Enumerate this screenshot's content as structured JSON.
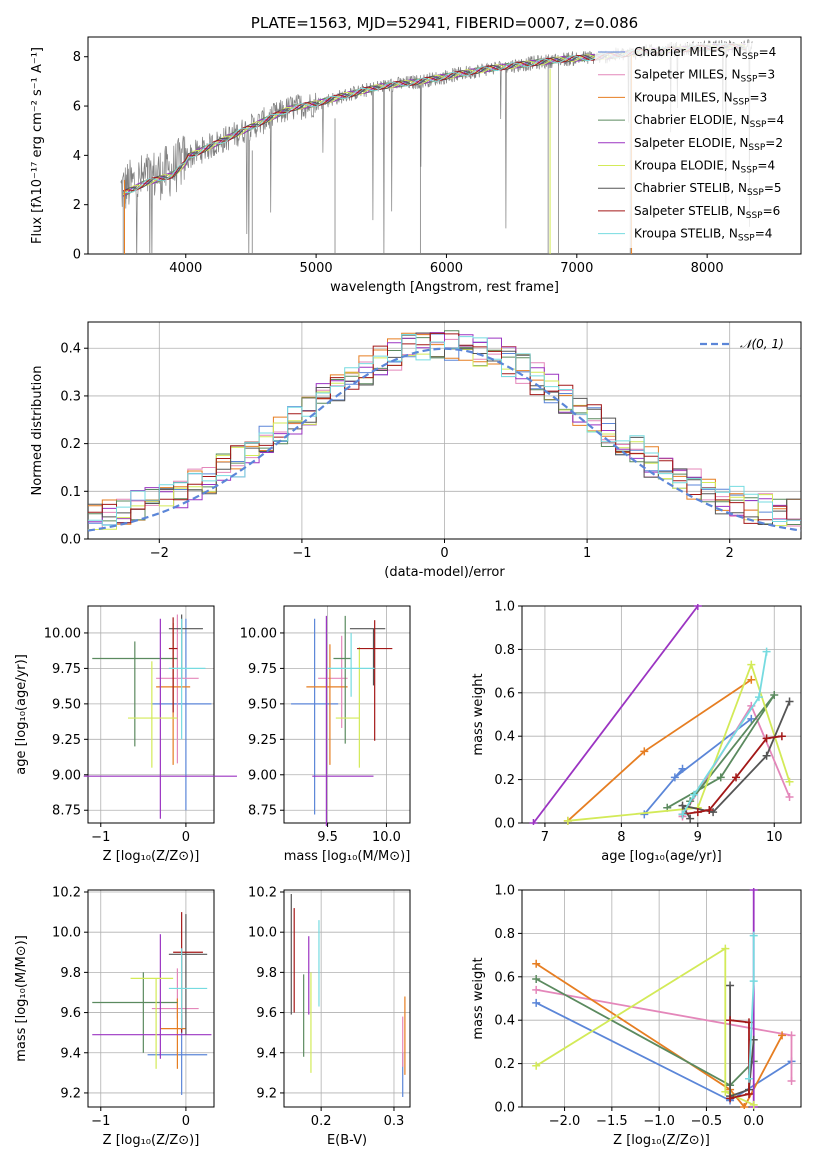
{
  "title": "PLATE=1563, MJD=52941, FIBERID=0007, z=0.086",
  "colors": {
    "Chabrier MILES": "#5b86d8",
    "Salpeter MILES": "#e487ba",
    "Kroupa MILES": "#e67e22",
    "Chabrier ELODIE": "#5b8a5f",
    "Salpeter ELODIE": "#9b34c2",
    "Kroupa ELODIE": "#d3ea58",
    "Chabrier STELIB": "#555555",
    "Salpeter STELIB": "#a31818",
    "Kroupa STELIB": "#76dbe0",
    "data": "#808080",
    "normal": "#5b86d8"
  },
  "chart_data": [
    {
      "id": "spectrum",
      "type": "line",
      "title": "PLATE=1563, MJD=52941, FIBERID=0007, z=0.086",
      "xlabel": "wavelength [Angstrom, rest frame]",
      "ylabel": "Flux [fλ10⁻¹⁷ erg cm⁻² s⁻¹ A⁻¹]",
      "xlim": [
        3250,
        8720
      ],
      "ylim": [
        0,
        8.8
      ],
      "xticks": [
        4000,
        5000,
        6000,
        7000,
        8000
      ],
      "yticks": [
        0,
        2,
        4,
        6,
        8
      ],
      "grid": false,
      "legend_position": "upper-right",
      "data_trend": [
        [
          3500,
          2.6
        ],
        [
          3700,
          3.1
        ],
        [
          3900,
          3.4
        ],
        [
          4000,
          3.9
        ],
        [
          4200,
          4.4
        ],
        [
          4400,
          4.9
        ],
        [
          4600,
          5.4
        ],
        [
          4800,
          5.9
        ],
        [
          5000,
          6.1
        ],
        [
          5200,
          6.4
        ],
        [
          5500,
          6.8
        ],
        [
          5800,
          7.0
        ],
        [
          6000,
          7.2
        ],
        [
          6300,
          7.5
        ],
        [
          6600,
          7.7
        ],
        [
          6900,
          7.9
        ],
        [
          7200,
          8.0
        ],
        [
          7500,
          8.2
        ],
        [
          7800,
          8.3
        ],
        [
          8100,
          8.4
        ],
        [
          8350,
          8.4
        ]
      ],
      "data_range": [
        3500,
        8350
      ],
      "legend": [
        {
          "label": "Chabrier MILES, N",
          "sub": "SSP",
          "tail": "=4",
          "model": "Chabrier MILES"
        },
        {
          "label": "Salpeter MILES, N",
          "sub": "SSP",
          "tail": "=3",
          "model": "Salpeter MILES"
        },
        {
          "label": "Kroupa MILES, N",
          "sub": "SSP",
          "tail": "=3",
          "model": "Kroupa MILES"
        },
        {
          "label": "Chabrier ELODIE, N",
          "sub": "SSP",
          "tail": "=4",
          "model": "Chabrier ELODIE"
        },
        {
          "label": "Salpeter ELODIE, N",
          "sub": "SSP",
          "tail": "=2",
          "model": "Salpeter ELODIE"
        },
        {
          "label": "Kroupa ELODIE, N",
          "sub": "SSP",
          "tail": "=4",
          "model": "Kroupa ELODIE"
        },
        {
          "label": "Chabrier STELIB, N",
          "sub": "SSP",
          "tail": "=5",
          "model": "Chabrier STELIB"
        },
        {
          "label": "Salpeter STELIB, N",
          "sub": "SSP",
          "tail": "=6",
          "model": "Salpeter STELIB"
        },
        {
          "label": "Kroupa STELIB, N",
          "sub": "SSP",
          "tail": "=4",
          "model": "Kroupa STELIB"
        }
      ]
    },
    {
      "id": "residuals",
      "type": "line",
      "xlabel": "(data-model)/error",
      "ylabel": "Normed distribution",
      "xlim": [
        -2.5,
        2.5
      ],
      "ylim": [
        0,
        0.455
      ],
      "xticks": [
        -2,
        -1,
        0,
        1,
        2
      ],
      "yticks": [
        0.0,
        0.1,
        0.2,
        0.3,
        0.4
      ],
      "grid": true,
      "legend_position": "upper-right",
      "normal_label": "𝒩(0, 1)",
      "bin_width": 0.1,
      "bin_start": -2.5
    },
    {
      "id": "age_vs_Z",
      "type": "scatter",
      "xlabel": "Z [log₁₀(Z/Z⊙)]",
      "ylabel": "age  [log₁₀(age/yr)]",
      "xlim": [
        -1.15,
        0.33
      ],
      "ylim": [
        8.66,
        10.19
      ],
      "xticks": [
        -1,
        0
      ],
      "yticks": [
        8.75,
        9.0,
        9.25,
        9.5,
        9.75,
        10.0
      ],
      "grid": true,
      "points": [
        {
          "model": "Chabrier MILES",
          "x": 0.0,
          "xerr": [
            0.4,
            0.3
          ],
          "y": 9.5,
          "yerr": [
            0.75,
            0.6
          ]
        },
        {
          "model": "Salpeter MILES",
          "x": -0.1,
          "xerr": [
            0.25,
            0.25
          ],
          "y": 9.68,
          "yerr": [
            0.6,
            0.45
          ]
        },
        {
          "model": "Kroupa MILES",
          "x": -0.15,
          "xerr": [
            0.2,
            0.2
          ],
          "y": 9.62,
          "yerr": [
            0.55,
            0.45
          ]
        },
        {
          "model": "Chabrier ELODIE",
          "x": -0.6,
          "xerr": [
            0.5,
            0.5
          ],
          "y": 9.82,
          "yerr": [
            0.62,
            0.12
          ]
        },
        {
          "model": "Salpeter ELODIE",
          "x": -0.3,
          "xerr": [
            0.9,
            0.9
          ],
          "y": 8.99,
          "yerr": [
            0.3,
            1.11
          ]
        },
        {
          "model": "Kroupa ELODIE",
          "x": -0.4,
          "xerr": [
            0.28,
            0.3
          ],
          "y": 9.4,
          "yerr": [
            0.35,
            0.4
          ]
        },
        {
          "model": "Chabrier STELIB",
          "x": -0.05,
          "xerr": [
            0.15,
            0.25
          ],
          "y": 10.03,
          "yerr": [
            0.35,
            0.1
          ]
        },
        {
          "model": "Salpeter STELIB",
          "x": -0.15,
          "xerr": [
            0.05,
            0.05
          ],
          "y": 9.89,
          "yerr": [
            0.45,
            0.22
          ]
        },
        {
          "model": "Kroupa STELIB",
          "x": -0.05,
          "xerr": [
            0.15,
            0.28
          ],
          "y": 9.75,
          "yerr": [
            0.5,
            0.35
          ]
        }
      ]
    },
    {
      "id": "age_vs_mass",
      "type": "scatter",
      "xlabel": "mass [log₁₀(M/M⊙)]",
      "ylabel": "",
      "xlim": [
        9.13,
        10.2
      ],
      "ylim": [
        8.66,
        10.19
      ],
      "xticks": [
        9.5,
        10.0
      ],
      "yticks": [
        8.75,
        9.0,
        9.25,
        9.5,
        9.75,
        10.0
      ],
      "grid": true,
      "points": [
        {
          "model": "Chabrier MILES",
          "x": 9.39,
          "xerr": [
            0.2,
            0.2
          ],
          "y": 9.5,
          "yerr": [
            0.78,
            0.6
          ]
        },
        {
          "model": "Salpeter MILES",
          "x": 9.62,
          "xerr": [
            0.2,
            0.05
          ],
          "y": 9.68,
          "yerr": [
            0.35,
            0.3
          ]
        },
        {
          "model": "Kroupa MILES",
          "x": 9.52,
          "xerr": [
            0.2,
            0.15
          ],
          "y": 9.62,
          "yerr": [
            0.55,
            0.3
          ]
        },
        {
          "model": "Chabrier ELODIE",
          "x": 9.65,
          "xerr": [
            0.1,
            0.05
          ],
          "y": 9.82,
          "yerr": [
            0.6,
            0.3
          ]
        },
        {
          "model": "Salpeter ELODIE",
          "x": 9.49,
          "xerr": [
            0.12,
            0.4
          ],
          "y": 8.99,
          "yerr": [
            0.35,
            1.13
          ]
        },
        {
          "model": "Kroupa ELODIE",
          "x": 9.77,
          "xerr": [
            0.2,
            0.0
          ],
          "y": 9.4,
          "yerr": [
            0.35,
            0.5
          ]
        },
        {
          "model": "Chabrier STELIB",
          "x": 9.89,
          "xerr": [
            0.2,
            0.1
          ],
          "y": 10.03,
          "yerr": [
            0.4,
            0.0
          ]
        },
        {
          "model": "Salpeter STELIB",
          "x": 9.9,
          "xerr": [
            0.15,
            0.15
          ],
          "y": 9.89,
          "yerr": [
            0.65,
            0.2
          ]
        },
        {
          "model": "Kroupa STELIB",
          "x": 9.7,
          "xerr": [
            0.2,
            0.2
          ],
          "y": 9.75,
          "yerr": [
            0.2,
            0.25
          ]
        }
      ]
    },
    {
      "id": "weight_vs_age",
      "type": "line",
      "xlabel": "age  [log₁₀(age/yr)]",
      "ylabel": "mass weight",
      "xlim": [
        6.7,
        10.35
      ],
      "ylim": [
        0.0,
        1.0
      ],
      "xticks": [
        7,
        8,
        9,
        10
      ],
      "yticks": [
        0.0,
        0.2,
        0.4,
        0.6,
        0.8,
        1.0
      ],
      "grid": true,
      "series": [
        {
          "model": "Chabrier MILES",
          "x": [
            8.3,
            8.8,
            8.7,
            9.7
          ],
          "y": [
            0.04,
            0.25,
            0.21,
            0.48
          ]
        },
        {
          "model": "Salpeter MILES",
          "x": [
            8.8,
            9.7,
            10.2
          ],
          "y": [
            0.03,
            0.54,
            0.12
          ]
        },
        {
          "model": "Kroupa MILES",
          "x": [
            7.3,
            8.3,
            9.7
          ],
          "y": [
            0.01,
            0.33,
            0.66
          ]
        },
        {
          "model": "Chabrier ELODIE",
          "x": [
            8.6,
            9.3,
            10.0,
            8.9
          ],
          "y": [
            0.07,
            0.21,
            0.59,
            0.1
          ]
        },
        {
          "model": "Salpeter ELODIE",
          "x": [
            6.85,
            9.0
          ],
          "y": [
            0.0,
            1.0
          ]
        },
        {
          "model": "Kroupa ELODIE",
          "x": [
            7.3,
            9.0,
            9.7,
            10.2
          ],
          "y": [
            0.01,
            0.07,
            0.73,
            0.19
          ]
        },
        {
          "model": "Chabrier STELIB",
          "x": [
            8.9,
            8.8,
            9.2,
            9.9,
            10.2
          ],
          "y": [
            0.02,
            0.08,
            0.05,
            0.31,
            0.56
          ]
        },
        {
          "model": "Salpeter STELIB",
          "x": [
            8.8,
            9.0,
            9.15,
            9.5,
            9.9,
            10.1
          ],
          "y": [
            0.04,
            0.05,
            0.06,
            0.21,
            0.39,
            0.4
          ]
        },
        {
          "model": "Kroupa STELIB",
          "x": [
            8.8,
            8.95,
            9.8,
            9.9
          ],
          "y": [
            0.04,
            0.13,
            0.58,
            0.79
          ]
        }
      ]
    },
    {
      "id": "mass_vs_Z",
      "type": "scatter",
      "xlabel": "Z [log₁₀(Z/Z⊙)]",
      "ylabel": "mass [log₁₀(M/M⊙)]",
      "xlim": [
        -1.15,
        0.33
      ],
      "ylim": [
        9.13,
        10.21
      ],
      "xticks": [
        -1,
        0
      ],
      "yticks": [
        9.2,
        9.4,
        9.6,
        9.8,
        10.0,
        10.2
      ],
      "grid": true,
      "points": [
        {
          "model": "Chabrier MILES",
          "x": -0.05,
          "xerr": [
            0.4,
            0.3
          ],
          "y": 9.39,
          "yerr": [
            0.2,
            0.2
          ]
        },
        {
          "model": "Salpeter MILES",
          "x": -0.1,
          "xerr": [
            0.3,
            0.25
          ],
          "y": 9.62,
          "yerr": [
            0.05,
            0.2
          ]
        },
        {
          "model": "Kroupa MILES",
          "x": -0.1,
          "xerr": [
            0.2,
            0.1
          ],
          "y": 9.52,
          "yerr": [
            0.2,
            0.15
          ]
        },
        {
          "model": "Chabrier ELODIE",
          "x": -0.5,
          "xerr": [
            0.6,
            0.4
          ],
          "y": 9.65,
          "yerr": [
            0.25,
            0.15
          ]
        },
        {
          "model": "Salpeter ELODIE",
          "x": -0.3,
          "xerr": [
            0.8,
            0.6
          ],
          "y": 9.49,
          "yerr": [
            0.12,
            0.5
          ]
        },
        {
          "model": "Kroupa ELODIE",
          "x": -0.35,
          "xerr": [
            0.3,
            0.2
          ],
          "y": 9.77,
          "yerr": [
            0.45,
            0.0
          ]
        },
        {
          "model": "Chabrier STELIB",
          "x": 0.0,
          "xerr": [
            0.2,
            0.25
          ],
          "y": 9.89,
          "yerr": [
            0.4,
            0.2
          ]
        },
        {
          "model": "Salpeter STELIB",
          "x": -0.05,
          "xerr": [
            0.1,
            0.25
          ],
          "y": 9.9,
          "yerr": [
            0.4,
            0.2
          ]
        },
        {
          "model": "Kroupa STELIB",
          "x": -0.05,
          "xerr": [
            0.15,
            0.3
          ],
          "y": 9.72,
          "yerr": [
            0.2,
            0.2
          ]
        }
      ]
    },
    {
      "id": "mass_vs_EBV",
      "type": "scatter",
      "xlabel": "E(B-V)",
      "ylabel": "",
      "xlim": [
        0.149,
        0.322
      ],
      "ylim": [
        9.13,
        10.21
      ],
      "xticks": [
        0.2,
        0.3
      ],
      "yticks": [
        9.2,
        9.4,
        9.6,
        9.8,
        10.0,
        10.2
      ],
      "grid": true,
      "points": [
        {
          "model": "Chabrier MILES",
          "x": 0.312,
          "y": 9.29,
          "yerr": [
            0.11,
            0.11
          ]
        },
        {
          "model": "Salpeter MILES",
          "x": 0.312,
          "y": 9.45,
          "yerr": [
            0.12,
            0.13
          ]
        },
        {
          "model": "Kroupa MILES",
          "x": 0.315,
          "y": 9.49,
          "yerr": [
            0.2,
            0.19
          ]
        },
        {
          "model": "Chabrier ELODIE",
          "x": 0.176,
          "y": 9.59,
          "yerr": [
            0.21,
            0.2
          ]
        },
        {
          "model": "Salpeter ELODIE",
          "x": 0.183,
          "y": 9.73,
          "yerr": [
            0.14,
            0.25
          ]
        },
        {
          "model": "Kroupa ELODIE",
          "x": 0.186,
          "y": 9.55,
          "yerr": [
            0.25,
            0.25
          ]
        },
        {
          "model": "Chabrier STELIB",
          "x": 0.159,
          "y": 9.89,
          "yerr": [
            0.3,
            0.3
          ]
        },
        {
          "model": "Salpeter STELIB",
          "x": 0.163,
          "y": 9.86,
          "yerr": [
            0.26,
            0.26
          ]
        },
        {
          "model": "Kroupa STELIB",
          "x": 0.197,
          "y": 9.83,
          "yerr": [
            0.2,
            0.23
          ]
        }
      ]
    },
    {
      "id": "weight_vs_Z",
      "type": "line",
      "xlabel": "Z [log₁₀(Z/Z⊙)]",
      "ylabel": "mass weight",
      "xlim": [
        -2.45,
        0.5
      ],
      "ylim": [
        0.0,
        1.0
      ],
      "xticks": [
        -2.0,
        -1.5,
        -1.0,
        -0.5,
        0.0
      ],
      "yticks": [
        0.0,
        0.2,
        0.4,
        0.6,
        0.8,
        1.0
      ],
      "grid": true,
      "series": [
        {
          "model": "Chabrier MILES",
          "x": [
            -2.3,
            -0.25,
            0.4
          ],
          "y": [
            0.48,
            0.03,
            0.21
          ]
        },
        {
          "model": "Salpeter MILES",
          "x": [
            -2.3,
            0.4,
            0.4
          ],
          "y": [
            0.54,
            0.33,
            0.12
          ]
        },
        {
          "model": "Kroupa MILES",
          "x": [
            -2.3,
            -0.25,
            -0.1,
            0.3
          ],
          "y": [
            0.66,
            0.08,
            0.0,
            0.33
          ]
        },
        {
          "model": "Chabrier ELODIE",
          "x": [
            -2.3,
            -0.25,
            0.0
          ],
          "y": [
            0.59,
            0.1,
            0.21
          ]
        },
        {
          "model": "Salpeter ELODIE",
          "x": [
            0.0,
            0.0
          ],
          "y": [
            0.0,
            1.0
          ]
        },
        {
          "model": "Kroupa ELODIE",
          "x": [
            -2.3,
            -0.3,
            -0.3,
            0.0
          ],
          "y": [
            0.19,
            0.73,
            0.07,
            0.01
          ]
        },
        {
          "model": "Chabrier STELIB",
          "x": [
            -0.25,
            -0.25,
            -0.05,
            0.0
          ],
          "y": [
            0.56,
            0.05,
            0.08,
            0.31
          ]
        },
        {
          "model": "Salpeter STELIB",
          "x": [
            -0.25,
            -0.05,
            -0.05,
            -0.25
          ],
          "y": [
            0.4,
            0.39,
            0.06,
            0.04
          ]
        },
        {
          "model": "Kroupa STELIB",
          "x": [
            0.0,
            0.0,
            -0.05
          ],
          "y": [
            0.79,
            0.58,
            0.13
          ]
        }
      ]
    }
  ]
}
